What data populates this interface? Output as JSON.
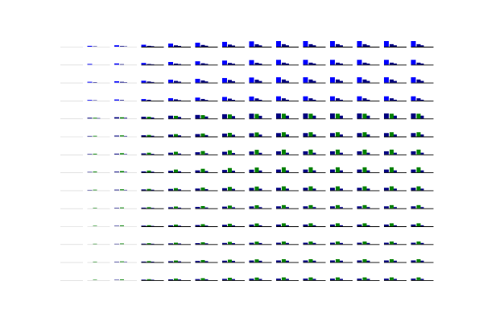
{
  "figure": {
    "background": "#ffffff",
    "rows": 14,
    "cols": 14
  },
  "palette": {
    "blue": "#0000ff",
    "green": "#008000",
    "navy": "#000080",
    "baseline_dark": "#000000",
    "baseline_light": "#d0d0d0"
  },
  "chart_data": {
    "type": "bar",
    "title": "",
    "xlabel": "",
    "ylabel": "",
    "grid": false,
    "axes": "off",
    "small_multiples": {
      "row_groups": [
        {
          "rows": [
            0,
            1,
            2,
            3
          ],
          "series_colors": [
            "blue",
            "navy",
            "navy"
          ],
          "base_height": 7
        },
        {
          "rows": [
            4,
            5,
            6,
            7,
            8
          ],
          "series_colors": [
            "navy",
            "green",
            "navy"
          ],
          "base_height": 7
        },
        {
          "rows": [
            9,
            10,
            11,
            12,
            13
          ],
          "series_colors": [
            "navy",
            "green",
            "navy"
          ],
          "base_height": 6
        }
      ],
      "column_scale": [
        0.05,
        0.15,
        0.25,
        0.35,
        0.55,
        0.7,
        0.85,
        0.95,
        1.0,
        1.0,
        1.0,
        1.0,
        1.0,
        1.0
      ],
      "row_pattern": [
        [
          1.0,
          0.45,
          0.25
        ],
        [
          0.85,
          0.35,
          0.2
        ],
        [
          0.95,
          0.55,
          0.3
        ],
        [
          0.75,
          0.4,
          0.15
        ],
        [
          0.9,
          0.85,
          0.5
        ],
        [
          0.6,
          0.75,
          0.35
        ],
        [
          0.55,
          0.85,
          0.3
        ],
        [
          0.5,
          0.9,
          0.35
        ],
        [
          0.45,
          0.7,
          0.3
        ],
        [
          0.4,
          0.65,
          0.25
        ],
        [
          0.35,
          0.6,
          0.2
        ],
        [
          0.3,
          0.55,
          0.25
        ],
        [
          0.35,
          0.6,
          0.3
        ],
        [
          0.3,
          0.55,
          0.25
        ]
      ]
    }
  }
}
